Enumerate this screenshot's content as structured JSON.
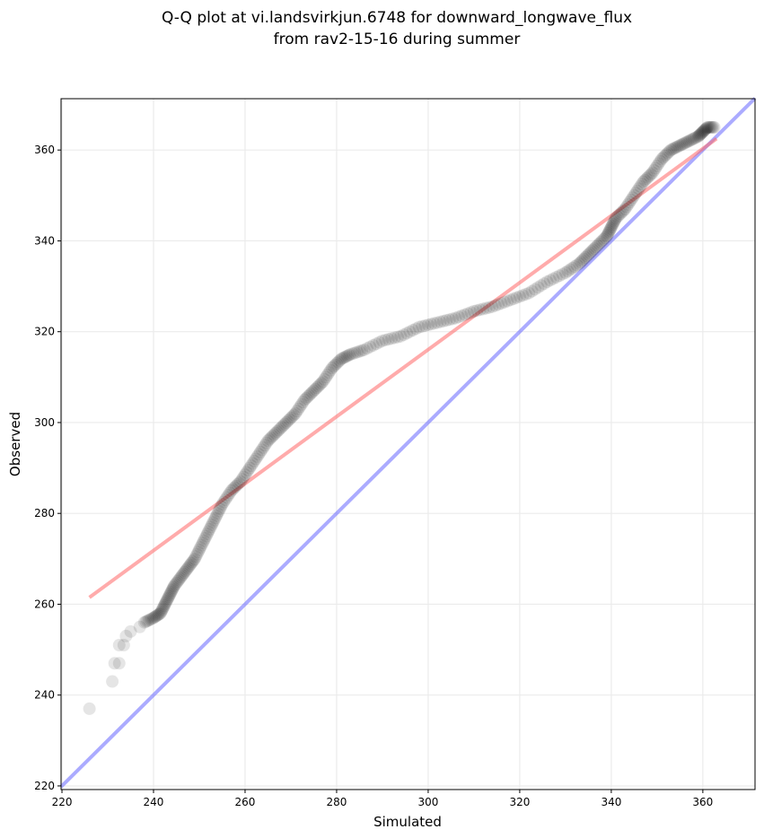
{
  "chart_data": {
    "type": "scatter",
    "title": [
      "Q-Q plot at vi.landsvirkjun.6748 for downward_longwave_flux",
      "from rav2-15-16 during summer"
    ],
    "xlabel": "Simulated",
    "ylabel": "Observed",
    "xlim": [
      219.8,
      371.4
    ],
    "ylim": [
      219.2,
      371.3
    ],
    "xticks": [
      220,
      240,
      260,
      280,
      300,
      320,
      340,
      360
    ],
    "yticks": [
      220,
      240,
      260,
      280,
      300,
      320,
      340,
      360
    ],
    "grid": true,
    "colors": {
      "points": "#000000",
      "fit_line": "#ff6666",
      "identity_line": "#6666ff"
    },
    "fit_line": {
      "x": [
        226,
        363
      ],
      "y": [
        261.5,
        362.5
      ]
    },
    "identity_line": {
      "x": [
        219.8,
        371.4
      ],
      "y": [
        219.8,
        371.4
      ]
    },
    "points": [
      [
        226,
        237
      ],
      [
        231,
        243
      ],
      [
        231.5,
        247
      ],
      [
        232.5,
        247
      ],
      [
        232.5,
        251
      ],
      [
        233.5,
        251
      ],
      [
        234,
        253
      ],
      [
        235,
        254
      ],
      [
        237,
        255
      ],
      [
        238,
        256
      ],
      [
        240,
        257
      ],
      [
        241.5,
        258
      ],
      [
        242.5,
        260
      ],
      [
        243.5,
        262
      ],
      [
        244.5,
        264
      ],
      [
        246,
        266
      ],
      [
        247.5,
        268
      ],
      [
        249,
        270
      ],
      [
        250.5,
        273
      ],
      [
        252,
        276
      ],
      [
        253.5,
        279
      ],
      [
        255,
        282
      ],
      [
        257,
        285
      ],
      [
        259,
        287
      ],
      [
        261,
        290
      ],
      [
        263,
        293
      ],
      [
        265,
        296
      ],
      [
        267,
        298
      ],
      [
        269,
        300
      ],
      [
        271,
        302
      ],
      [
        273,
        305
      ],
      [
        275,
        307
      ],
      [
        277,
        309
      ],
      [
        279,
        312
      ],
      [
        281,
        314
      ],
      [
        283,
        315
      ],
      [
        286,
        316
      ],
      [
        290,
        318
      ],
      [
        294,
        319
      ],
      [
        298,
        321
      ],
      [
        302,
        322
      ],
      [
        306,
        323
      ],
      [
        310,
        324.5
      ],
      [
        314,
        325.5
      ],
      [
        318,
        327
      ],
      [
        322,
        328.5
      ],
      [
        326,
        331
      ],
      [
        330,
        333
      ],
      [
        333,
        335
      ],
      [
        335,
        337
      ],
      [
        337,
        339
      ],
      [
        339,
        341
      ],
      [
        340,
        343
      ],
      [
        341,
        345
      ],
      [
        343,
        347
      ],
      [
        345,
        350
      ],
      [
        347,
        353
      ],
      [
        349,
        355
      ],
      [
        351,
        358
      ],
      [
        353,
        360
      ],
      [
        355,
        361
      ],
      [
        357,
        362
      ],
      [
        359,
        363
      ],
      [
        360,
        364
      ],
      [
        361,
        365
      ],
      [
        362.5,
        365
      ]
    ]
  }
}
